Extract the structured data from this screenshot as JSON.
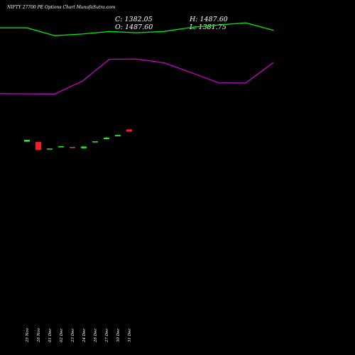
{
  "chart_data": {
    "type": "candlestick",
    "title": "NIFTY 27700 PE Options Chart MunafaSutra.com",
    "ohlc": {
      "close": "C: 1382.05",
      "high": "H: 1487.60",
      "open": "O: 1487.60",
      "low": "L: 1381.75"
    },
    "x_tick_labels": [
      "25 Nov",
      "26 Nov",
      "01 Dec",
      "02 Dec",
      "23 Dec",
      "24 Dec",
      "26 Dec",
      "27 Dec",
      "30 Dec",
      "31 Dec"
    ],
    "candles": [
      {
        "label": "25 Nov",
        "open": 1000,
        "high": 1000,
        "low": 914,
        "close": 914,
        "color": "#22ee22"
      },
      {
        "label": "26 Nov",
        "open": 905,
        "high": 905,
        "low": 533,
        "close": 533,
        "color": "#ee2222"
      },
      {
        "label": "01 Dec",
        "open": 597,
        "high": 597,
        "low": 580,
        "close": 580,
        "color": "#22ee22"
      },
      {
        "label": "02 Dec",
        "open": 700,
        "high": 700,
        "low": 683,
        "close": 683,
        "color": "#22ee22"
      },
      {
        "label": "23 Dec",
        "open": 673,
        "high": 673,
        "low": 612,
        "close": 647,
        "color": "#ee3355"
      },
      {
        "label": "24 Dec",
        "open": 690,
        "high": 698,
        "low": 595,
        "close": 612,
        "color": "#22ee22"
      },
      {
        "label": "26 Dec",
        "open": 931,
        "high": 931,
        "low": 905,
        "close": 905,
        "color": "#22ee22"
      },
      {
        "label": "27 Dec",
        "open": 1103,
        "high": 1137,
        "low": 1017,
        "close": 1034,
        "color": "#22ee22"
      },
      {
        "label": "30 Dec",
        "open": 1224,
        "high": 1224,
        "low": 1164,
        "close": 1164,
        "color": "#22ee22"
      },
      {
        "label": "31 Dec",
        "open": 1487.6,
        "high": 1487.6,
        "low": 1381.75,
        "close": 1382.05,
        "color": "#ee2222"
      }
    ],
    "upper_band": {
      "color": "#00ee00",
      "values": [
        6207,
        6207,
        5843,
        5920,
        6039,
        5980,
        6039,
        6226,
        6338,
        6442,
        6094
      ]
    },
    "lower_band": {
      "color": "#cc00cc",
      "values": [
        3150,
        3142,
        3133,
        3730,
        4744,
        4759,
        4583,
        4128,
        3652,
        3643,
        4597
      ]
    },
    "y_range": [
      -9000,
      7500
    ],
    "grid": false
  }
}
